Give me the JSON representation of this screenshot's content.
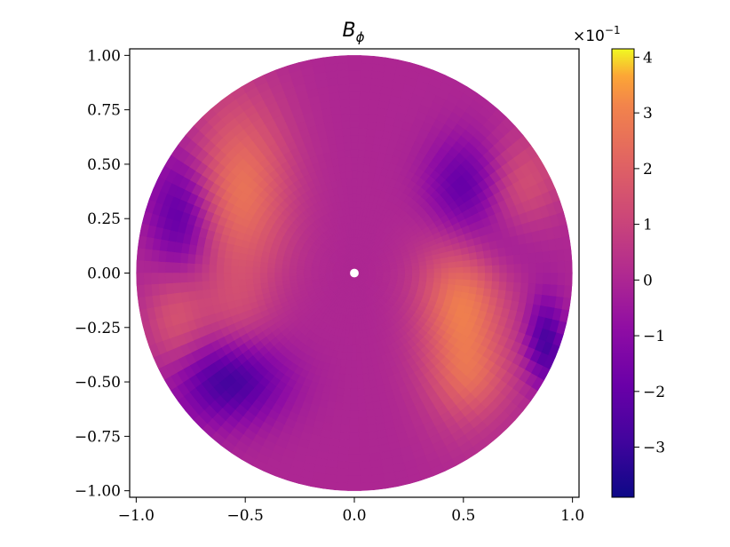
{
  "chart_data": {
    "type": "heatmap",
    "title": "B",
    "title_subscript": "ϕ",
    "xlabel": "",
    "ylabel": "",
    "xlim": [
      -1.03,
      1.03
    ],
    "ylim": [
      -1.03,
      1.03
    ],
    "x_ticks": [
      -1.0,
      -0.5,
      0.0,
      0.5,
      1.0
    ],
    "x_tick_labels": [
      "−1.0",
      "−0.5",
      "0.0",
      "0.5",
      "1.0"
    ],
    "y_ticks": [
      1.0,
      0.75,
      0.5,
      0.25,
      0.0,
      -0.25,
      -0.5,
      -0.75,
      -1.0
    ],
    "y_tick_labels": [
      "1.00",
      "0.75",
      "0.50",
      "0.25",
      "0.00",
      "−0.25",
      "−0.50",
      "−0.75",
      "−1.00"
    ],
    "domain": "disk",
    "disk_radius": 1.0,
    "inner_hole_radius": 0.02,
    "colormap": "plasma",
    "colorbar": {
      "range": [
        -3.9,
        4.15
      ],
      "ticks": [
        4,
        3,
        2,
        1,
        0,
        -1,
        -2,
        -3
      ],
      "tick_labels": [
        "4",
        "3",
        "2",
        "1",
        "0",
        "−1",
        "−2",
        "−3"
      ],
      "multiplier_base": "×10",
      "multiplier_exponent": "−1"
    },
    "grid": false,
    "features": [
      {
        "x": -0.52,
        "y": 0.38,
        "sigma_x": 0.16,
        "sigma_y": 0.3,
        "amplitude": 2.6
      },
      {
        "x": -0.55,
        "y": -0.18,
        "sigma_x": 0.12,
        "sigma_y": 0.14,
        "amplitude": 0.8
      },
      {
        "x": -0.82,
        "y": -0.2,
        "sigma_x": 0.1,
        "sigma_y": 0.2,
        "amplitude": 1.6
      },
      {
        "x": -0.8,
        "y": 0.25,
        "sigma_x": 0.1,
        "sigma_y": 0.2,
        "amplitude": -2.5
      },
      {
        "x": -0.58,
        "y": -0.5,
        "sigma_x": 0.18,
        "sigma_y": 0.13,
        "amplitude": -2.9
      },
      {
        "x": 0.5,
        "y": -0.15,
        "sigma_x": 0.14,
        "sigma_y": 0.3,
        "amplitude": 3.0
      },
      {
        "x": 0.55,
        "y": -0.5,
        "sigma_x": 0.12,
        "sigma_y": 0.12,
        "amplitude": 1.0
      },
      {
        "x": 0.78,
        "y": 0.42,
        "sigma_x": 0.12,
        "sigma_y": 0.16,
        "amplitude": 1.4
      },
      {
        "x": 0.5,
        "y": 0.38,
        "sigma_x": 0.12,
        "sigma_y": 0.16,
        "amplitude": -2.6
      },
      {
        "x": 0.88,
        "y": -0.32,
        "sigma_x": 0.06,
        "sigma_y": 0.14,
        "amplitude": -2.8
      },
      {
        "x": 0.62,
        "y": 0.12,
        "sigma_x": 0.15,
        "sigma_y": 0.12,
        "amplitude": -1.0
      }
    ]
  }
}
